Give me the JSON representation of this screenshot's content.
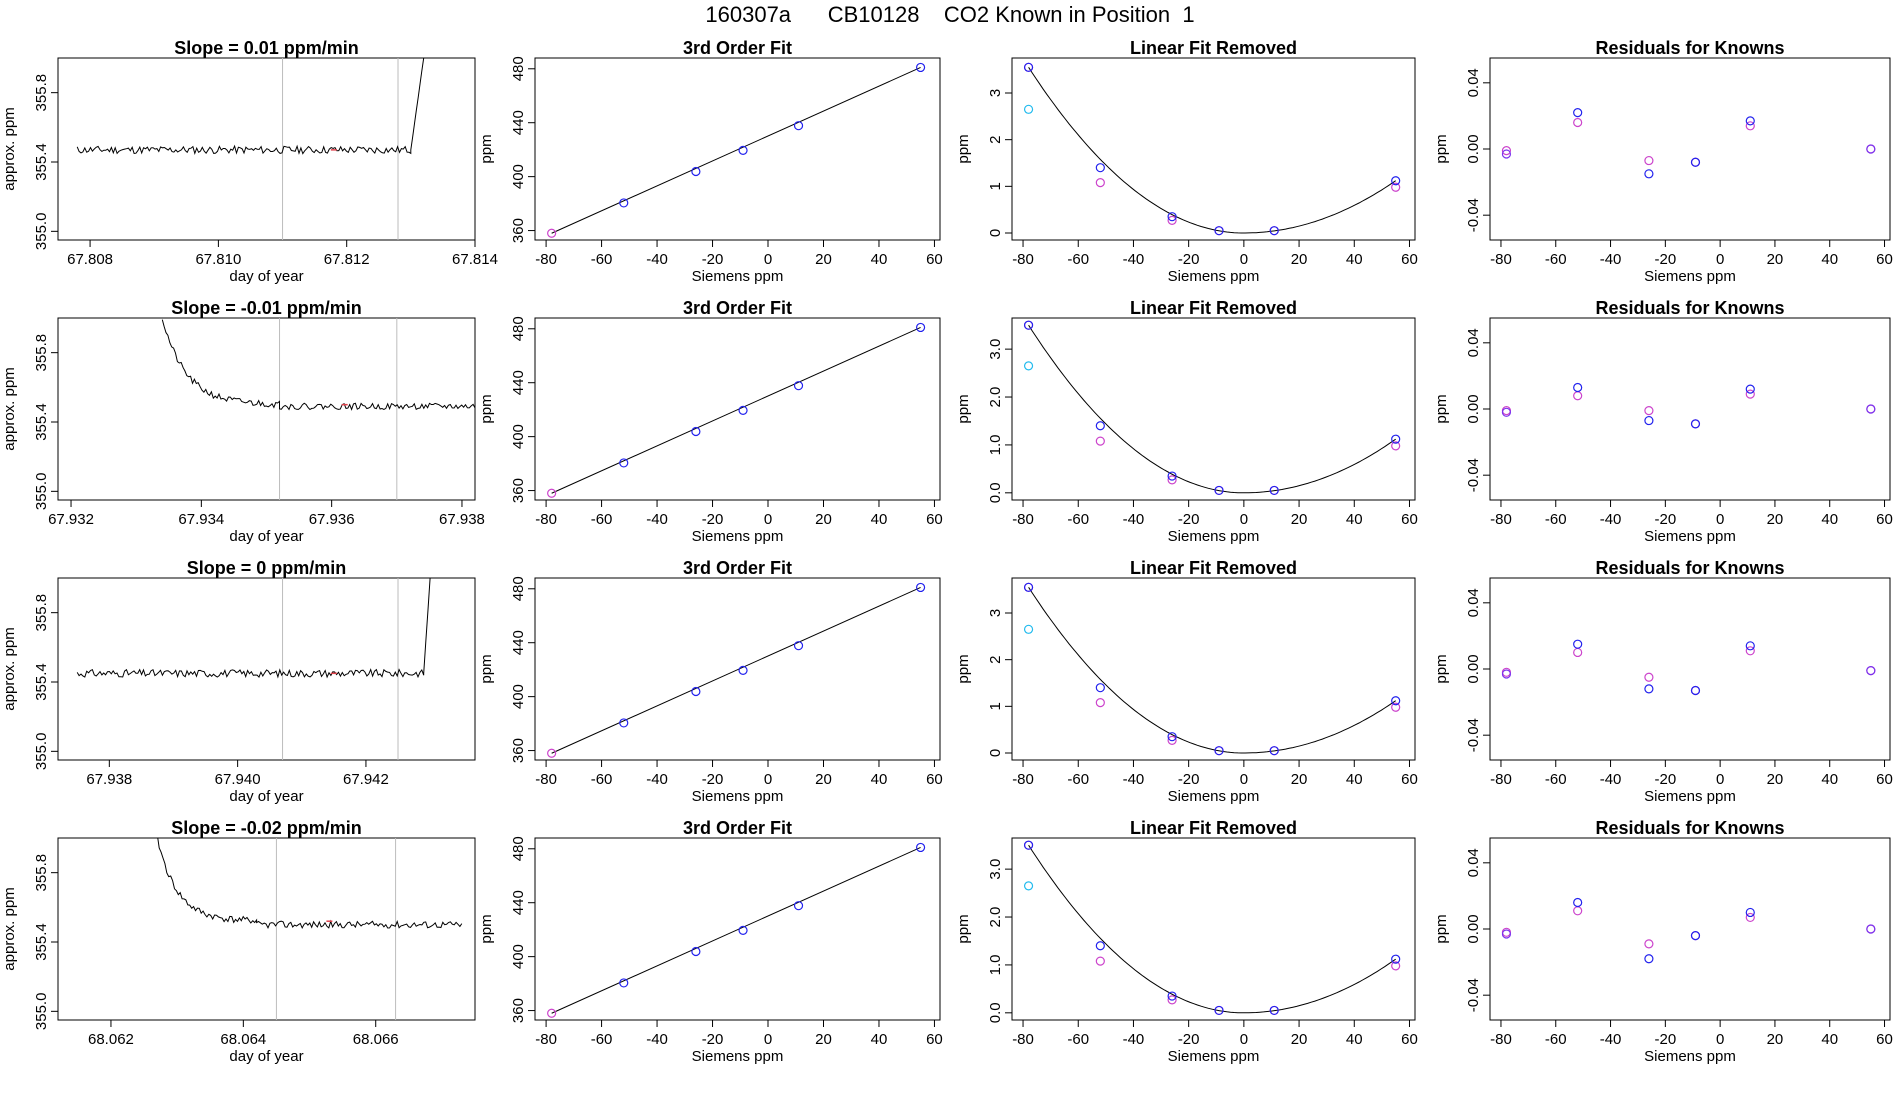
{
  "page": {
    "title": "160307a      CB10128    CO2 Known in Position  1"
  },
  "colors": {
    "axis": "#000000",
    "line": "#000000",
    "vline": "#bdbdbd",
    "blue": "#2222ee",
    "magenta": "#cc44cc",
    "cyan": "#22bbee",
    "purple": "#7a33ee",
    "red": "#e0404a"
  },
  "chart_data": {
    "rows": [
      {
        "timeseries": {
          "type": "line",
          "title": "Slope =  0.01  ppm/min",
          "xlabel": "day of year",
          "ylabel": "approx. ppm",
          "xlim": [
            67.8075,
            67.814
          ],
          "ylim": [
            354.95,
            356.0
          ],
          "xticks": [
            67.808,
            67.81,
            67.812,
            67.814
          ],
          "xtick_labels": [
            "67.808",
            "67.810",
            "67.812",
            "67.814"
          ],
          "yticks": [
            355.0,
            355.4,
            355.8
          ],
          "ytick_labels": [
            "355.0",
            "355.4",
            "355.8"
          ],
          "vlines": [
            67.811,
            67.8128
          ],
          "segments": [
            {
              "x0": 67.8078,
              "x1": 67.813,
              "level": 355.47,
              "amp": 0.022,
              "seed": 11
            },
            {
              "x0": 67.813,
              "x1": 67.8132,
              "level": 355.47,
              "rise_to": 356.0
            }
          ],
          "red_mark": 67.8118
        },
        "fit": {
          "type": "line",
          "title": "3rd Order Fit",
          "xlabel": "Siemens ppm",
          "ylabel": "ppm",
          "xlim": [
            -84,
            62
          ],
          "ylim": [
            353,
            488
          ],
          "x": [
            -78,
            -52,
            -26,
            -9,
            11,
            55
          ],
          "y": [
            358,
            380.5,
            403.8,
            419.5,
            437.8,
            481
          ]
        },
        "linear_removed": {
          "type": "scatter",
          "title": "Linear Fit Removed",
          "xlabel": "Siemens ppm",
          "ylabel": "ppm",
          "xlim": [
            -84,
            62
          ],
          "ylim": [
            -0.15,
            3.75
          ],
          "yticks": [
            0,
            1,
            2,
            3
          ],
          "ytick_labels": [
            "0",
            "1",
            "2",
            "3"
          ],
          "x": [
            -78,
            -52,
            -26,
            -9,
            11,
            55
          ],
          "blue_y": [
            3.55,
            1.4,
            0.35,
            0.05,
            0.05,
            1.12
          ],
          "magenta_y": [
            3.55,
            1.08,
            0.27,
            0.05,
            0.05,
            0.98
          ],
          "cyan": {
            "x": -78,
            "y": 2.65
          }
        },
        "residuals": {
          "type": "scatter",
          "title": "Residuals for Knowns",
          "xlabel": "Siemens ppm",
          "ylabel": "ppm",
          "xlim": [
            -84,
            62
          ],
          "ylim": [
            -0.055,
            0.055
          ],
          "x": [
            -78,
            -52,
            -26,
            -9,
            11,
            55
          ],
          "blue_y": [
            -0.003,
            0.022,
            -0.015,
            -0.008,
            0.017,
            0.0
          ],
          "magenta_y": [
            -0.001,
            0.016,
            -0.007,
            -0.008,
            0.014,
            0.0
          ]
        }
      },
      {
        "timeseries": {
          "type": "line",
          "title": "Slope =  -0.01  ppm/min",
          "xlabel": "day of year",
          "ylabel": "approx. ppm",
          "xlim": [
            67.9318,
            67.9382
          ],
          "ylim": [
            354.95,
            356.0
          ],
          "xticks": [
            67.932,
            67.934,
            67.936,
            67.938
          ],
          "xtick_labels": [
            "67.932",
            "67.934",
            "67.936",
            "67.938"
          ],
          "yticks": [
            355.0,
            355.4,
            355.8
          ],
          "ytick_labels": [
            "355.0",
            "355.4",
            "355.8"
          ],
          "vlines": [
            67.9352,
            67.937
          ],
          "segments": [
            {
              "x0": 67.9334,
              "x1": 67.9352,
              "decay_from": 356.0,
              "level": 355.5,
              "amp": 0.02,
              "seed": 21
            },
            {
              "x0": 67.9352,
              "x1": 67.9382,
              "level": 355.49,
              "amp": 0.018,
              "seed": 22
            }
          ],
          "red_mark": 67.9362
        },
        "fit": {
          "type": "line",
          "title": "3rd Order Fit",
          "xlabel": "Siemens ppm",
          "ylabel": "ppm",
          "xlim": [
            -84,
            62
          ],
          "ylim": [
            353,
            488
          ],
          "x": [
            -78,
            -52,
            -26,
            -9,
            11,
            55
          ],
          "y": [
            358,
            380.5,
            403.8,
            419.5,
            437.8,
            481
          ]
        },
        "linear_removed": {
          "type": "scatter",
          "title": "Linear Fit Removed",
          "xlabel": "Siemens ppm",
          "ylabel": "ppm",
          "xlim": [
            -84,
            62
          ],
          "ylim": [
            -0.15,
            3.65
          ],
          "yticks": [
            0,
            1,
            2,
            3
          ],
          "ytick_labels": [
            "0.0",
            "1.0",
            "2.0",
            "3.0"
          ],
          "x": [
            -78,
            -52,
            -26,
            -9,
            11,
            55
          ],
          "blue_y": [
            3.5,
            1.4,
            0.35,
            0.05,
            0.05,
            1.12
          ],
          "magenta_y": [
            3.5,
            1.08,
            0.27,
            0.05,
            0.05,
            0.98
          ],
          "cyan": {
            "x": -78,
            "y": 2.65
          }
        },
        "residuals": {
          "type": "scatter",
          "title": "Residuals for Knowns",
          "xlabel": "Siemens ppm",
          "ylabel": "ppm",
          "xlim": [
            -84,
            62
          ],
          "ylim": [
            -0.055,
            0.055
          ],
          "x": [
            -78,
            -52,
            -26,
            -9,
            11,
            55
          ],
          "blue_y": [
            -0.002,
            0.013,
            -0.007,
            -0.009,
            0.012,
            0.0
          ],
          "magenta_y": [
            -0.001,
            0.008,
            -0.001,
            -0.009,
            0.009,
            0.0
          ]
        }
      },
      {
        "timeseries": {
          "type": "line",
          "title": "Slope =  0  ppm/min",
          "xlabel": "day of year",
          "ylabel": "approx. ppm",
          "xlim": [
            67.9372,
            67.9437
          ],
          "ylim": [
            354.95,
            356.0
          ],
          "xticks": [
            67.938,
            67.94,
            67.942
          ],
          "xtick_labels": [
            "67.938",
            "67.940",
            "67.942"
          ],
          "yticks": [
            355.0,
            355.4,
            355.8
          ],
          "ytick_labels": [
            "355.0",
            "355.4",
            "355.8"
          ],
          "vlines": [
            67.9407,
            67.9425
          ],
          "segments": [
            {
              "x0": 67.9375,
              "x1": 67.9429,
              "level": 355.45,
              "amp": 0.022,
              "seed": 31
            },
            {
              "x0": 67.9429,
              "x1": 67.943,
              "level": 355.45,
              "rise_to": 356.0
            }
          ],
          "red_mark": 67.9415
        },
        "fit": {
          "type": "line",
          "title": "3rd Order Fit",
          "xlabel": "Siemens ppm",
          "ylabel": "ppm",
          "xlim": [
            -84,
            62
          ],
          "ylim": [
            353,
            488
          ],
          "x": [
            -78,
            -52,
            -26,
            -9,
            11,
            55
          ],
          "y": [
            358,
            380.5,
            403.8,
            419.5,
            437.8,
            481
          ]
        },
        "linear_removed": {
          "type": "scatter",
          "title": "Linear Fit Removed",
          "xlabel": "Siemens ppm",
          "ylabel": "ppm",
          "xlim": [
            -84,
            62
          ],
          "ylim": [
            -0.15,
            3.75
          ],
          "yticks": [
            0,
            1,
            2,
            3
          ],
          "ytick_labels": [
            "0",
            "1",
            "2",
            "3"
          ],
          "x": [
            -78,
            -52,
            -26,
            -9,
            11,
            55
          ],
          "blue_y": [
            3.55,
            1.4,
            0.35,
            0.05,
            0.05,
            1.12
          ],
          "magenta_y": [
            3.55,
            1.08,
            0.27,
            0.05,
            0.05,
            0.98
          ],
          "cyan": {
            "x": -78,
            "y": 2.65
          }
        },
        "residuals": {
          "type": "scatter",
          "title": "Residuals for Knowns",
          "xlabel": "Siemens ppm",
          "ylabel": "ppm",
          "xlim": [
            -84,
            62
          ],
          "ylim": [
            -0.055,
            0.055
          ],
          "x": [
            -78,
            -52,
            -26,
            -9,
            11,
            55
          ],
          "blue_y": [
            -0.003,
            0.015,
            -0.012,
            -0.013,
            0.014,
            -0.001
          ],
          "magenta_y": [
            -0.002,
            0.01,
            -0.005,
            -0.013,
            0.011,
            -0.001
          ]
        }
      },
      {
        "timeseries": {
          "type": "line",
          "title": "Slope =  -0.02  ppm/min",
          "xlabel": "day of year",
          "ylabel": "approx. ppm",
          "xlim": [
            68.0612,
            68.0675
          ],
          "ylim": [
            354.95,
            356.0
          ],
          "xticks": [
            68.062,
            68.064,
            68.066
          ],
          "xtick_labels": [
            "68.062",
            "68.064",
            "68.066"
          ],
          "yticks": [
            355.0,
            355.4,
            355.8
          ],
          "ytick_labels": [
            "355.0",
            "355.4",
            "355.8"
          ],
          "vlines": [
            68.0645,
            68.0663
          ],
          "segments": [
            {
              "x0": 68.0627,
              "x1": 68.0642,
              "decay_from": 356.0,
              "level": 355.52,
              "amp": 0.02,
              "seed": 41
            },
            {
              "x0": 68.0642,
              "x1": 68.0673,
              "level": 355.5,
              "amp": 0.02,
              "seed": 42
            }
          ],
          "red_mark": 68.0653
        },
        "fit": {
          "type": "line",
          "title": "3rd Order Fit",
          "xlabel": "Siemens ppm",
          "ylabel": "ppm",
          "xlim": [
            -84,
            62
          ],
          "ylim": [
            353,
            488
          ],
          "x": [
            -78,
            -52,
            -26,
            -9,
            11,
            55
          ],
          "y": [
            358,
            380.5,
            403.8,
            419.5,
            437.8,
            481
          ]
        },
        "linear_removed": {
          "type": "scatter",
          "title": "Linear Fit Removed",
          "xlabel": "Siemens ppm",
          "ylabel": "ppm",
          "xlim": [
            -84,
            62
          ],
          "ylim": [
            -0.15,
            3.65
          ],
          "yticks": [
            0,
            1,
            2,
            3
          ],
          "ytick_labels": [
            "0.0",
            "1.0",
            "2.0",
            "3.0"
          ],
          "x": [
            -78,
            -52,
            -26,
            -9,
            11,
            55
          ],
          "blue_y": [
            3.5,
            1.4,
            0.35,
            0.05,
            0.05,
            1.12
          ],
          "magenta_y": [
            3.5,
            1.08,
            0.27,
            0.05,
            0.05,
            0.98
          ],
          "cyan": {
            "x": -78,
            "y": 2.65
          }
        },
        "residuals": {
          "type": "scatter",
          "title": "Residuals for Knowns",
          "xlabel": "Siemens ppm",
          "ylabel": "ppm",
          "xlim": [
            -84,
            62
          ],
          "ylim": [
            -0.055,
            0.055
          ],
          "x": [
            -78,
            -52,
            -26,
            -9,
            11,
            55
          ],
          "blue_y": [
            -0.003,
            0.016,
            -0.018,
            -0.004,
            0.01,
            0.0
          ],
          "magenta_y": [
            -0.002,
            0.011,
            -0.009,
            -0.004,
            0.007,
            0.0
          ]
        }
      }
    ],
    "common": {
      "fit_xticks": [
        -80,
        -60,
        -40,
        -20,
        0,
        20,
        40,
        60
      ],
      "fit_xtick_labels": [
        "-80",
        "-60",
        "-40",
        "-20",
        "0",
        "20",
        "40",
        "60"
      ],
      "fit_yticks": [
        360,
        400,
        440,
        480
      ],
      "fit_ytick_labels": [
        "360",
        "400",
        "440",
        "480"
      ],
      "resid_yticks": [
        -0.04,
        0.0,
        0.04
      ],
      "resid_ytick_labels": [
        "-0.04",
        "0.00",
        "0.04"
      ]
    }
  }
}
